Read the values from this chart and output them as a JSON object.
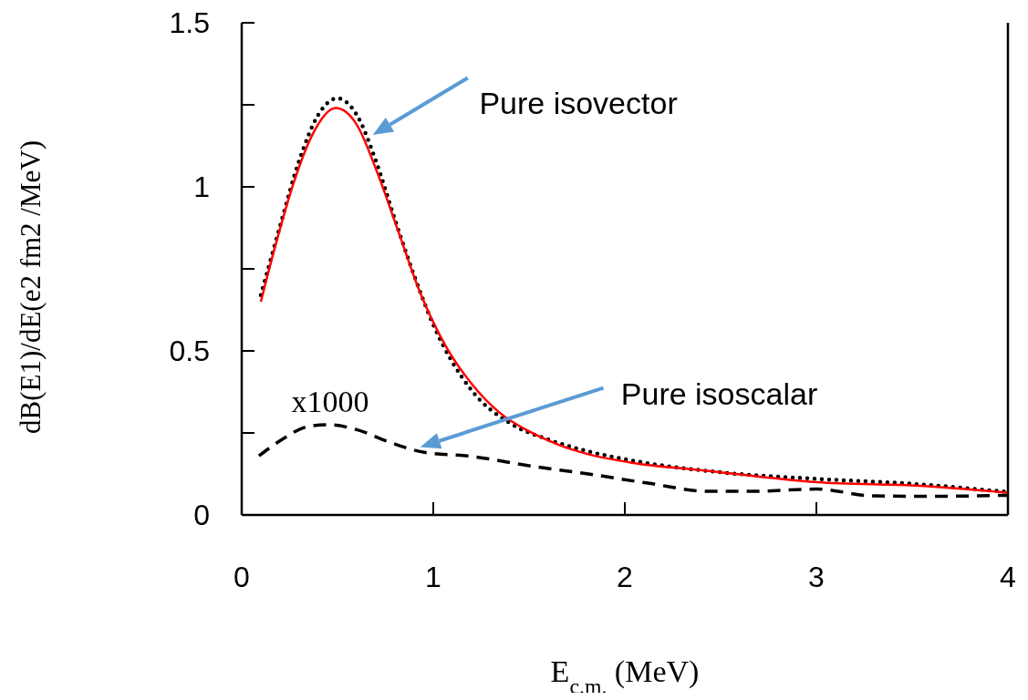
{
  "chart_data": {
    "type": "line",
    "xlabel": "E$_{c.m.}$ (MeV)",
    "ylabel": "dB(E1)/dE(e2 fm2 /MeV)",
    "xlim": [
      0,
      4
    ],
    "xticks": [
      0,
      1,
      2,
      3,
      4
    ],
    "ylim": [
      0,
      1.5
    ],
    "yticks": [
      0,
      {
        "value": 0.25,
        "label": null
      },
      0.5,
      {
        "value": 0.75,
        "label": null
      },
      1,
      {
        "value": 1.25,
        "label": null
      },
      1.5
    ],
    "grid": false,
    "series": [
      {
        "color": "#000000",
        "line_style": "dotted",
        "x": [
          0.1,
          0.2,
          0.3,
          0.4,
          0.5,
          0.6,
          0.7,
          0.8,
          0.9,
          1.0,
          1.2,
          1.4,
          1.6,
          1.8,
          2.0,
          2.5,
          3.0,
          3.5,
          4.0
        ],
        "values": [
          0.67,
          0.88,
          1.08,
          1.22,
          1.27,
          1.22,
          1.08,
          0.9,
          0.73,
          0.58,
          0.38,
          0.28,
          0.23,
          0.195,
          0.17,
          0.13,
          0.11,
          0.095,
          0.07
        ]
      },
      {
        "color": "#ff0000",
        "line_style": "solid",
        "x": [
          0.1,
          0.18,
          0.27,
          0.37,
          0.49,
          0.6,
          0.71,
          0.82,
          0.93,
          1.06,
          1.2,
          1.35,
          1.5,
          1.65,
          1.81,
          2.03,
          2.44,
          3.0,
          3.54,
          4.0
        ],
        "values": [
          0.65,
          0.83,
          1.01,
          1.16,
          1.24,
          1.19,
          1.04,
          0.86,
          0.68,
          0.52,
          0.4,
          0.31,
          0.255,
          0.215,
          0.185,
          0.16,
          0.134,
          0.1,
          0.089,
          0.068
        ]
      },
      {
        "color": "#000000",
        "line_style": "dashed",
        "x": [
          0.09,
          0.21,
          0.35,
          0.46,
          0.6,
          0.78,
          0.96,
          1.18,
          1.5,
          1.81,
          2.12,
          2.44,
          2.67,
          3.0,
          3.3,
          3.62,
          4.0
        ],
        "values": [
          0.18,
          0.23,
          0.27,
          0.275,
          0.26,
          0.22,
          0.19,
          0.18,
          0.15,
          0.125,
          0.097,
          0.072,
          0.072,
          0.079,
          0.058,
          0.057,
          0.06
        ]
      }
    ],
    "annotations": [
      "Pure isovector",
      "Pure isoscalar",
      {
        "text": "x1000",
        "x": 0.5,
        "y": 0.275
      }
    ]
  }
}
